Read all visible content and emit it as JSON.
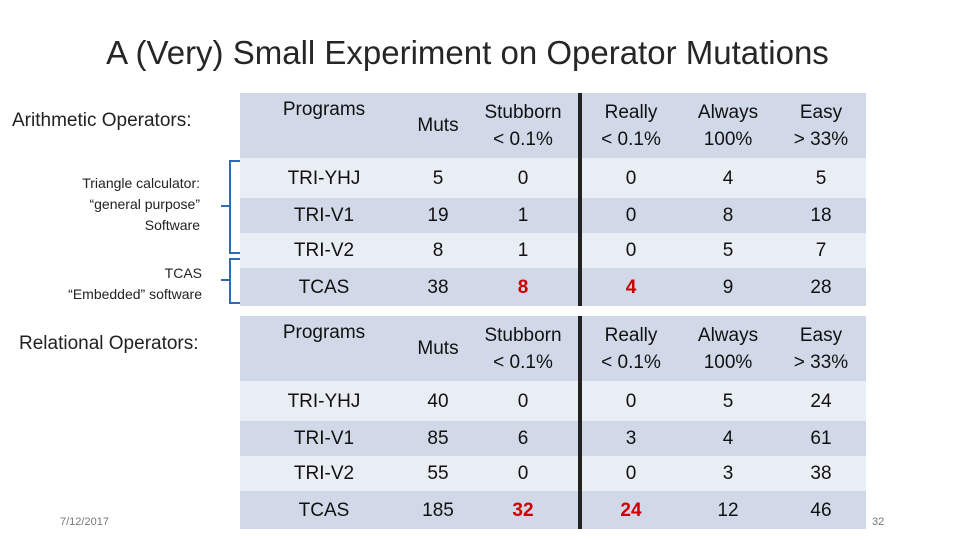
{
  "title": "A (Very) Small Experiment on Operator Mutations",
  "labels": {
    "arith": "Arithmetic Operators:",
    "tri_1": "Triangle calculator:",
    "tri_2": "“general purpose”",
    "tri_3": "Software",
    "tcas_1": "TCAS",
    "tcas_2": "“Embedded” software",
    "rel": "Relational Operators:"
  },
  "footer": {
    "date": "7/12/2017",
    "page": "32"
  },
  "headers": [
    [
      "Programs"
    ],
    [
      "Muts"
    ],
    [
      "Stubborn",
      "< 0.1%"
    ],
    [
      "Really",
      "< 0.1%"
    ],
    [
      "Always",
      "100%"
    ],
    [
      "Easy",
      "> 33%"
    ]
  ],
  "arithmetic": {
    "rows": [
      [
        "TRI-YHJ",
        "5",
        "0",
        "0",
        "4",
        "5"
      ],
      [
        "TRI-V1",
        "19",
        "1",
        "0",
        "8",
        "18"
      ],
      [
        "TRI-V2",
        "8",
        "1",
        "0",
        "5",
        "7"
      ],
      [
        "TCAS",
        "38",
        "8",
        "4",
        "9",
        "28"
      ]
    ]
  },
  "relational": {
    "rows": [
      [
        "TRI-YHJ",
        "40",
        "0",
        "0",
        "5",
        "24"
      ],
      [
        "TRI-V1",
        "85",
        "6",
        "3",
        "4",
        "61"
      ],
      [
        "TRI-V2",
        "55",
        "0",
        "0",
        "3",
        "38"
      ],
      [
        "TCAS",
        "185",
        "32",
        "24",
        "12",
        "46"
      ]
    ]
  },
  "colors": {
    "header_bg": "#d1d9e9",
    "row_bg": "#e9edf4",
    "highlight": "#cc0000",
    "bracket": "#2e6bb0"
  }
}
